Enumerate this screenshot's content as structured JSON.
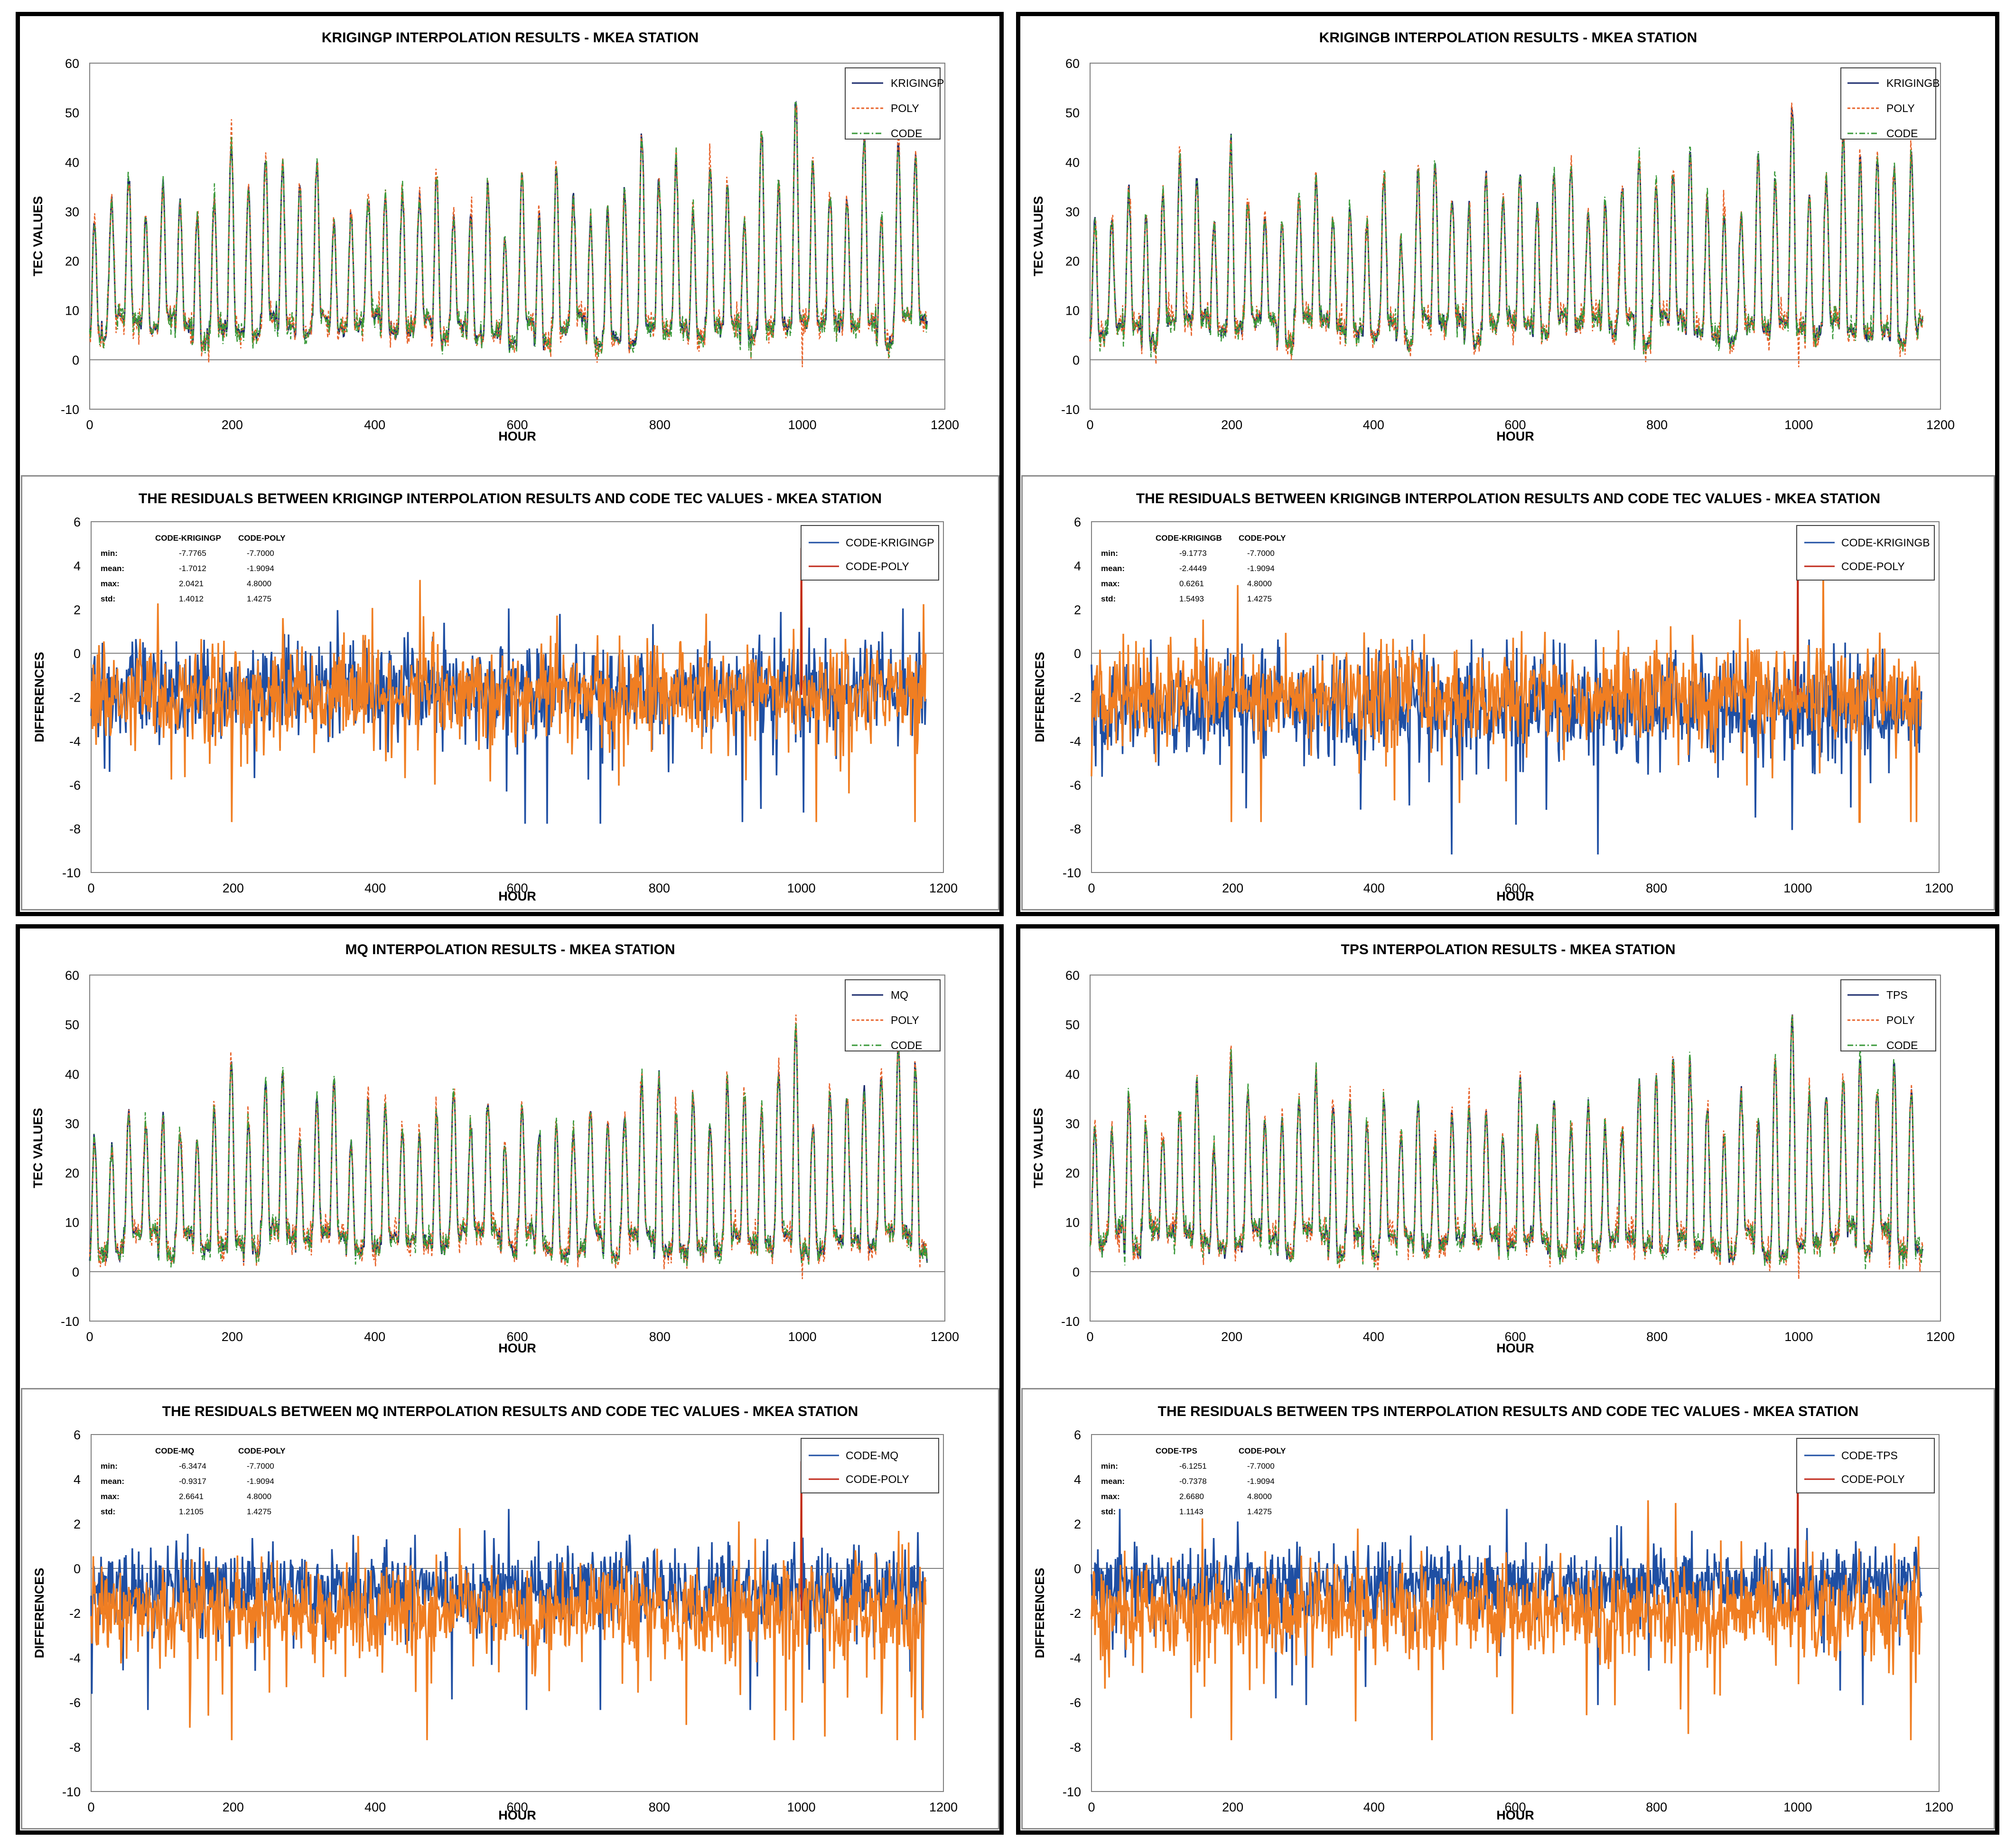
{
  "colors": {
    "poly": "#e8632a",
    "code": "#3b9a3b",
    "axis": "#7f7f7f",
    "kriging_line": "#1a2a6c",
    "residual_method": "#1f4fa3",
    "residual_poly_band": "#f07e22",
    "residual_poly_spike": "#c0281a"
  },
  "charts": [
    {
      "id": "kp-tec",
      "kind": "tec",
      "type": "line",
      "method": "KRIGINGP",
      "title": "KRIGINGP INTERPOLATION RESULTS - MKEA STATION",
      "xlabel": "HOUR",
      "ylabel": "TEC VALUES",
      "xlim": [
        0,
        1200
      ],
      "ylim": [
        -10,
        60
      ],
      "xticks": [
        0,
        200,
        400,
        600,
        800,
        1000,
        1200
      ],
      "yticks": [
        -10,
        0,
        10,
        20,
        30,
        40,
        50,
        60
      ],
      "legend": [
        "KRIGINGP",
        "POLY",
        "CODE"
      ],
      "n_points": 1176,
      "period_hours": 24,
      "seed": 11,
      "series_stats": {
        "min_approx": -1.5,
        "max_approx": 50.5
      },
      "legend_position": "top-right"
    },
    {
      "id": "kb-tec",
      "kind": "tec",
      "type": "line",
      "method": "KRIGINGB",
      "title": "KRIGINGB INTERPOLATION RESULTS - MKEA STATION",
      "xlabel": "HOUR",
      "ylabel": "TEC VALUES",
      "xlim": [
        0,
        1200
      ],
      "ylim": [
        -10,
        60
      ],
      "xticks": [
        0,
        200,
        400,
        600,
        800,
        1000,
        1200
      ],
      "yticks": [
        -10,
        0,
        10,
        20,
        30,
        40,
        50,
        60
      ],
      "legend": [
        "KRIGINGB",
        "POLY",
        "CODE"
      ],
      "n_points": 1176,
      "period_hours": 24,
      "seed": 23,
      "series_stats": {
        "min_approx": -1.5,
        "max_approx": 51.5
      },
      "legend_position": "top-right"
    },
    {
      "id": "kp-res",
      "kind": "res",
      "type": "line",
      "method": "KRIGINGP",
      "title": "THE RESIDUALS BETWEEN KRIGINGP INTERPOLATION RESULTS AND CODE TEC VALUES - MKEA STATION",
      "xlabel": "HOUR",
      "ylabel": "DIFFERENCES",
      "xlim": [
        0,
        1200
      ],
      "ylim": [
        -10,
        6
      ],
      "xticks": [
        0,
        200,
        400,
        600,
        800,
        1000,
        1200
      ],
      "yticks": [
        -10,
        -8,
        -6,
        -4,
        -2,
        0,
        2,
        4,
        6
      ],
      "legend": [
        "CODE-KRIGINGP",
        "CODE-POLY"
      ],
      "stats": {
        "headers": [
          "CODE-KRIGINGP",
          "CODE-POLY"
        ],
        "rows": [
          {
            "label": "min:",
            "a": "-7.7765",
            "b": "-7.7000"
          },
          {
            "label": "mean:",
            "a": "-1.7012",
            "b": "-1.9094"
          },
          {
            "label": "max:",
            "a": "2.0421",
            "b": "4.8000"
          },
          {
            "label": "std:",
            "a": "1.4012",
            "b": "1.4275"
          }
        ]
      },
      "series_stats": {
        "method_mean": -1.7012,
        "method_std": 1.4012,
        "method_min": -7.7765,
        "method_max": 2.0421,
        "poly_mean": -1.9094,
        "poly_std": 1.4275,
        "poly_min": -7.7,
        "poly_max": 4.8
      },
      "n_points": 1176,
      "seed": 37,
      "draw_order": [
        "method",
        "poly"
      ],
      "legend_position": "top-right"
    },
    {
      "id": "kb-res",
      "kind": "res",
      "type": "line",
      "method": "KRIGINGB",
      "title": "THE RESIDUALS BETWEEN KRIGINGB INTERPOLATION RESULTS AND CODE TEC VALUES - MKEA STATION",
      "xlabel": "HOUR",
      "ylabel": "DIFFERENCES",
      "xlim": [
        0,
        1200
      ],
      "ylim": [
        -10,
        6
      ],
      "xticks": [
        0,
        200,
        400,
        600,
        800,
        1000,
        1200
      ],
      "yticks": [
        -10,
        -8,
        -6,
        -4,
        -2,
        0,
        2,
        4,
        6
      ],
      "legend": [
        "CODE-KRIGINGB",
        "CODE-POLY"
      ],
      "stats": {
        "headers": [
          "CODE-KRIGINGB",
          "CODE-POLY"
        ],
        "rows": [
          {
            "label": "min:",
            "a": "-9.1773",
            "b": "-7.7000"
          },
          {
            "label": "mean:",
            "a": "-2.4449",
            "b": "-1.9094"
          },
          {
            "label": "max:",
            "a": "0.6261",
            "b": "4.8000"
          },
          {
            "label": "std:",
            "a": "1.5493",
            "b": "1.4275"
          }
        ]
      },
      "series_stats": {
        "method_mean": -2.4449,
        "method_std": 1.5493,
        "method_min": -9.1773,
        "method_max": 0.6261,
        "poly_mean": -1.9094,
        "poly_std": 1.4275,
        "poly_min": -7.7,
        "poly_max": 4.8
      },
      "n_points": 1176,
      "seed": 41,
      "draw_order": [
        "method",
        "poly"
      ],
      "legend_position": "top-right"
    },
    {
      "id": "mq-tec",
      "kind": "tec",
      "type": "line",
      "method": "MQ",
      "title": "MQ INTERPOLATION RESULTS - MKEA STATION",
      "xlabel": "HOUR",
      "ylabel": "TEC VALUES",
      "xlim": [
        0,
        1200
      ],
      "ylim": [
        -10,
        60
      ],
      "xticks": [
        0,
        200,
        400,
        600,
        800,
        1000,
        1200
      ],
      "yticks": [
        -10,
        0,
        10,
        20,
        30,
        40,
        50,
        60
      ],
      "legend": [
        "MQ",
        "POLY",
        "CODE"
      ],
      "n_points": 1176,
      "period_hours": 24,
      "seed": 53,
      "series_stats": {
        "min_approx": -1.5,
        "max_approx": 50
      },
      "legend_position": "top-right"
    },
    {
      "id": "tps-tec",
      "kind": "tec",
      "type": "line",
      "method": "TPS",
      "title": "TPS INTERPOLATION RESULTS - MKEA STATION",
      "xlabel": "HOUR",
      "ylabel": "TEC VALUES",
      "xlim": [
        0,
        1200
      ],
      "ylim": [
        -10,
        60
      ],
      "xticks": [
        0,
        200,
        400,
        600,
        800,
        1000,
        1200
      ],
      "yticks": [
        -10,
        0,
        10,
        20,
        30,
        40,
        50,
        60
      ],
      "legend": [
        "TPS",
        "POLY",
        "CODE"
      ],
      "n_points": 1176,
      "period_hours": 24,
      "seed": 67,
      "series_stats": {
        "min_approx": -1.5,
        "max_approx": 50
      },
      "legend_position": "top-right"
    },
    {
      "id": "mq-res",
      "kind": "res",
      "type": "line",
      "method": "MQ",
      "title": "THE RESIDUALS BETWEEN MQ INTERPOLATION RESULTS AND CODE TEC VALUES - MKEA STATION",
      "xlabel": "HOUR",
      "ylabel": "DIFFERENCES",
      "xlim": [
        0,
        1200
      ],
      "ylim": [
        -10,
        6
      ],
      "xticks": [
        0,
        200,
        400,
        600,
        800,
        1000,
        1200
      ],
      "yticks": [
        -10,
        -8,
        -6,
        -4,
        -2,
        0,
        2,
        4,
        6
      ],
      "legend": [
        "CODE-MQ",
        "CODE-POLY"
      ],
      "stats": {
        "headers": [
          "CODE-MQ",
          "CODE-POLY"
        ],
        "rows": [
          {
            "label": "min:",
            "a": "-6.3474",
            "b": "-7.7000"
          },
          {
            "label": "mean:",
            "a": "-0.9317",
            "b": "-1.9094"
          },
          {
            "label": "max:",
            "a": "2.6641",
            "b": "4.8000"
          },
          {
            "label": "std:",
            "a": "1.2105",
            "b": "1.4275"
          }
        ]
      },
      "series_stats": {
        "method_mean": -0.9317,
        "method_std": 1.2105,
        "method_min": -6.3474,
        "method_max": 2.6641,
        "poly_mean": -1.9094,
        "poly_std": 1.4275,
        "poly_min": -7.7,
        "poly_max": 4.8
      },
      "n_points": 1176,
      "seed": 71,
      "draw_order": [
        "method",
        "poly"
      ],
      "legend_position": "top-right"
    },
    {
      "id": "tps-res",
      "kind": "res",
      "type": "line",
      "method": "TPS",
      "title": "THE RESIDUALS BETWEEN TPS INTERPOLATION RESULTS AND CODE TEC VALUES - MKEA STATION",
      "xlabel": "HOUR",
      "ylabel": "DIFFERENCES",
      "xlim": [
        0,
        1200
      ],
      "ylim": [
        -10,
        6
      ],
      "xticks": [
        0,
        200,
        400,
        600,
        800,
        1000,
        1200
      ],
      "yticks": [
        -10,
        -8,
        -6,
        -4,
        -2,
        0,
        2,
        4,
        6
      ],
      "legend": [
        "CODE-TPS",
        "CODE-POLY"
      ],
      "stats": {
        "headers": [
          "CODE-TPS",
          "CODE-POLY"
        ],
        "rows": [
          {
            "label": "min:",
            "a": "-6.1251",
            "b": "-7.7000"
          },
          {
            "label": "mean:",
            "a": "-0.7378",
            "b": "-1.9094"
          },
          {
            "label": "max:",
            "a": "2.6680",
            "b": "4.8000"
          },
          {
            "label": "std:",
            "a": "1.1143",
            "b": "1.4275"
          }
        ]
      },
      "series_stats": {
        "method_mean": -0.7378,
        "method_std": 1.1143,
        "method_min": -6.1251,
        "method_max": 2.668,
        "poly_mean": -1.9094,
        "poly_std": 1.4275,
        "poly_min": -7.7,
        "poly_max": 4.8
      },
      "n_points": 1176,
      "seed": 83,
      "draw_order": [
        "method",
        "poly"
      ],
      "legend_position": "top-right"
    }
  ],
  "chart_data": [
    {
      "type": "line",
      "title": "KRIGINGP INTERPOLATION RESULTS - MKEA STATION",
      "xlabel": "HOUR",
      "ylabel": "TEC VALUES",
      "xlim": [
        0,
        1200
      ],
      "ylim": [
        -10,
        60
      ],
      "series": [
        {
          "name": "KRIGINGP"
        },
        {
          "name": "POLY"
        },
        {
          "name": "CODE"
        }
      ],
      "description": "about 49 diurnal cycles over 1176 hours, TEC ~3 to ~50 TECU"
    },
    {
      "type": "line",
      "title": "KRIGINGB INTERPOLATION RESULTS - MKEA STATION",
      "xlabel": "HOUR",
      "ylabel": "TEC VALUES",
      "xlim": [
        0,
        1200
      ],
      "ylim": [
        -10,
        60
      ],
      "series": [
        {
          "name": "KRIGINGB"
        },
        {
          "name": "POLY"
        },
        {
          "name": "CODE"
        }
      ]
    },
    {
      "type": "line",
      "title": "THE RESIDUALS BETWEEN KRIGINGP INTERPOLATION RESULTS AND CODE TEC VALUES - MKEA STATION",
      "xlabel": "HOUR",
      "ylabel": "DIFFERENCES",
      "xlim": [
        0,
        1200
      ],
      "ylim": [
        -10,
        6
      ],
      "series": [
        {
          "name": "CODE-KRIGINGP",
          "min": -7.7765,
          "mean": -1.7012,
          "max": 2.0421,
          "std": 1.4012
        },
        {
          "name": "CODE-POLY",
          "min": -7.7,
          "mean": -1.9094,
          "max": 4.8,
          "std": 1.4275
        }
      ]
    },
    {
      "type": "line",
      "title": "THE RESIDUALS BETWEEN KRIGINGB INTERPOLATION RESULTS AND CODE TEC VALUES - MKEA STATION",
      "xlabel": "HOUR",
      "ylabel": "DIFFERENCES",
      "xlim": [
        0,
        1200
      ],
      "ylim": [
        -10,
        6
      ],
      "series": [
        {
          "name": "CODE-KRIGINGB",
          "min": -9.1773,
          "mean": -2.4449,
          "max": 0.6261,
          "std": 1.5493
        },
        {
          "name": "CODE-POLY",
          "min": -7.7,
          "mean": -1.9094,
          "max": 4.8,
          "std": 1.4275
        }
      ]
    },
    {
      "type": "line",
      "title": "MQ INTERPOLATION RESULTS - MKEA STATION",
      "xlabel": "HOUR",
      "ylabel": "TEC VALUES",
      "xlim": [
        0,
        1200
      ],
      "ylim": [
        -10,
        60
      ],
      "series": [
        {
          "name": "MQ"
        },
        {
          "name": "POLY"
        },
        {
          "name": "CODE"
        }
      ]
    },
    {
      "type": "line",
      "title": "TPS INTERPOLATION RESULTS - MKEA STATION",
      "xlabel": "HOUR",
      "ylabel": "TEC VALUES",
      "xlim": [
        0,
        1200
      ],
      "ylim": [
        -10,
        60
      ],
      "series": [
        {
          "name": "TPS"
        },
        {
          "name": "POLY"
        },
        {
          "name": "CODE"
        }
      ]
    },
    {
      "type": "line",
      "title": "THE RESIDUALS BETWEEN MQ INTERPOLATION RESULTS AND CODE TEC VALUES - MKEA STATION",
      "xlabel": "HOUR",
      "ylabel": "DIFFERENCES",
      "xlim": [
        0,
        1200
      ],
      "ylim": [
        -10,
        6
      ],
      "series": [
        {
          "name": "CODE-MQ",
          "min": -6.3474,
          "mean": -0.9317,
          "max": 2.6641,
          "std": 1.2105
        },
        {
          "name": "CODE-POLY",
          "min": -7.7,
          "mean": -1.9094,
          "max": 4.8,
          "std": 1.4275
        }
      ]
    },
    {
      "type": "line",
      "title": "THE RESIDUALS BETWEEN TPS INTERPOLATION RESULTS AND CODE TEC VALUES - MKEA STATION",
      "xlabel": "HOUR",
      "ylabel": "DIFFERENCES",
      "xlim": [
        0,
        1200
      ],
      "ylim": [
        -10,
        6
      ],
      "series": [
        {
          "name": "CODE-TPS",
          "min": -6.1251,
          "mean": -0.7378,
          "max": 2.668,
          "std": 1.1143
        },
        {
          "name": "CODE-POLY",
          "min": -7.7,
          "mean": -1.9094,
          "max": 4.8,
          "std": 1.4275
        }
      ]
    }
  ]
}
